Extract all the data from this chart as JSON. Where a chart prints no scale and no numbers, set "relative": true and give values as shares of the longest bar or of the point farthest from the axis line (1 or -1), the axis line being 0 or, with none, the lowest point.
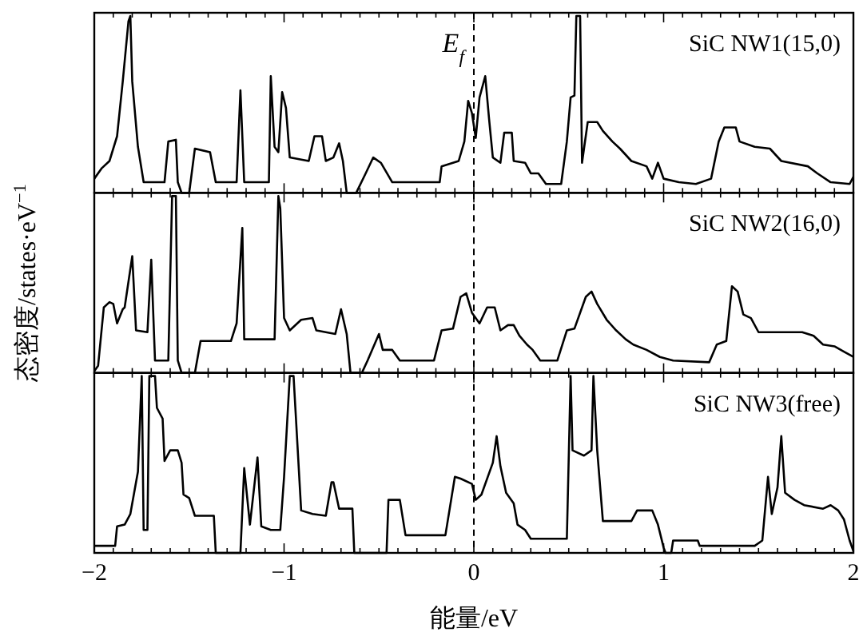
{
  "chart_data": [
    {
      "type": "line",
      "relative": true,
      "xlim": [
        -2,
        2
      ],
      "xticks": [
        -2,
        -1,
        0,
        1,
        2
      ],
      "tick_labels": false,
      "annotations": [
        {
          "text": "E$_{f}$",
          "x": 0,
          "y": 0.85
        }
      ],
      "ref_lines": [
        {
          "axis": "x",
          "value": 0,
          "line_style": "dashed",
          "color": "#000000"
        }
      ],
      "series": [
        {
          "name": "SiC NW1(15,0)",
          "color": "#000000",
          "x": [
            -2.0,
            -1.96,
            -1.92,
            -1.88,
            -1.85,
            -1.82,
            -1.81,
            -1.8,
            -1.77,
            -1.74,
            -1.63,
            -1.61,
            -1.57,
            -1.56,
            -1.54,
            -1.5,
            -1.47,
            -1.39,
            -1.36,
            -1.25,
            -1.23,
            -1.21,
            -1.08,
            -1.07,
            -1.05,
            -1.03,
            -1.01,
            -0.99,
            -0.97,
            -0.87,
            -0.84,
            -0.8,
            -0.78,
            -0.74,
            -0.71,
            -0.69,
            -0.67,
            -0.62,
            -0.57,
            -0.53,
            -0.49,
            -0.43,
            -0.18,
            -0.17,
            -0.08,
            -0.05,
            -0.03,
            -0.01,
            0.01,
            0.03,
            0.06,
            0.08,
            0.1,
            0.14,
            0.16,
            0.2,
            0.21,
            0.27,
            0.3,
            0.34,
            0.38,
            0.46,
            0.49,
            0.51,
            0.53,
            0.54,
            0.56,
            0.57,
            0.6,
            0.65,
            0.68,
            0.73,
            0.77,
            0.83,
            0.91,
            0.94,
            0.97,
            1.0,
            1.08,
            1.17,
            1.25,
            1.29,
            1.32,
            1.38,
            1.4,
            1.48,
            1.56,
            1.62,
            1.76,
            1.81,
            1.88,
            1.98,
            2.0
          ],
          "values": [
            0.08,
            0.14,
            0.18,
            0.32,
            0.63,
            0.97,
            1.0,
            0.63,
            0.26,
            0.06,
            0.06,
            0.29,
            0.3,
            0.06,
            0,
            0,
            0.25,
            0.23,
            0.06,
            0.06,
            0.58,
            0.06,
            0.06,
            0.66,
            0.26,
            0.23,
            0.57,
            0.48,
            0.2,
            0.18,
            0.32,
            0.32,
            0.18,
            0.2,
            0.28,
            0.18,
            0,
            0,
            0.11,
            0.2,
            0.17,
            0.06,
            0.06,
            0.15,
            0.18,
            0.29,
            0.52,
            0.45,
            0.31,
            0.54,
            0.66,
            0.42,
            0.2,
            0.17,
            0.34,
            0.34,
            0.18,
            0.17,
            0.11,
            0.11,
            0.05,
            0.05,
            0.29,
            0.54,
            0.55,
            1.0,
            1.0,
            0.17,
            0.4,
            0.4,
            0.35,
            0.29,
            0.25,
            0.18,
            0.15,
            0.08,
            0.17,
            0.08,
            0.06,
            0.05,
            0.08,
            0.29,
            0.37,
            0.37,
            0.29,
            0.26,
            0.25,
            0.18,
            0.15,
            0.11,
            0.06,
            0.05,
            0.09
          ]
        }
      ]
    },
    {
      "type": "line",
      "relative": true,
      "xlim": [
        -2,
        2
      ],
      "xticks": [
        -2,
        -1,
        0,
        1,
        2
      ],
      "tick_labels": false,
      "ylabel": "态密度/states·eV$^{−1}$",
      "ref_lines": [
        {
          "axis": "x",
          "value": 0,
          "line_style": "dashed",
          "color": "#000000"
        }
      ],
      "series": [
        {
          "name": "SiC NW2(16,0)",
          "color": "#000000",
          "x": [
            -2.0,
            -1.98,
            -1.95,
            -1.92,
            -1.9,
            -1.88,
            -1.85,
            -1.84,
            -1.8,
            -1.78,
            -1.72,
            -1.7,
            -1.68,
            -1.61,
            -1.59,
            -1.57,
            -1.56,
            -1.54,
            -1.47,
            -1.44,
            -1.28,
            -1.25,
            -1.22,
            -1.21,
            -1.05,
            -1.03,
            -1.02,
            -1.0,
            -0.97,
            -0.91,
            -0.85,
            -0.83,
            -0.73,
            -0.7,
            -0.67,
            -0.65,
            -0.59,
            -0.56,
            -0.5,
            -0.48,
            -0.43,
            -0.39,
            -0.21,
            -0.17,
            -0.11,
            -0.07,
            -0.04,
            -0.01,
            0.03,
            0.07,
            0.11,
            0.14,
            0.18,
            0.21,
            0.24,
            0.28,
            0.31,
            0.35,
            0.44,
            0.49,
            0.53,
            0.59,
            0.62,
            0.65,
            0.7,
            0.75,
            0.8,
            0.84,
            0.91,
            0.98,
            1.05,
            1.24,
            1.28,
            1.33,
            1.36,
            1.39,
            1.42,
            1.46,
            1.5,
            1.55,
            1.73,
            1.79,
            1.84,
            1.9,
            1.95,
            2.0
          ],
          "values": [
            0.01,
            0.04,
            0.37,
            0.4,
            0.39,
            0.28,
            0.36,
            0.37,
            0.66,
            0.24,
            0.23,
            0.64,
            0.07,
            0.07,
            1.0,
            1.0,
            0.07,
            0,
            0,
            0.18,
            0.18,
            0.28,
            0.82,
            0.19,
            0.19,
            1.0,
            0.93,
            0.31,
            0.24,
            0.3,
            0.31,
            0.24,
            0.22,
            0.36,
            0.22,
            0,
            0,
            0.07,
            0.22,
            0.13,
            0.13,
            0.07,
            0.07,
            0.24,
            0.25,
            0.43,
            0.45,
            0.34,
            0.28,
            0.37,
            0.37,
            0.24,
            0.27,
            0.27,
            0.21,
            0.16,
            0.13,
            0.07,
            0.07,
            0.24,
            0.25,
            0.43,
            0.46,
            0.39,
            0.3,
            0.24,
            0.19,
            0.16,
            0.13,
            0.09,
            0.07,
            0.06,
            0.16,
            0.18,
            0.49,
            0.46,
            0.33,
            0.31,
            0.23,
            0.23,
            0.23,
            0.21,
            0.16,
            0.15,
            0.12,
            0.09
          ]
        }
      ]
    },
    {
      "type": "line",
      "relative": true,
      "xlim": [
        -2,
        2
      ],
      "xticks": [
        -2,
        -1,
        0,
        1,
        2
      ],
      "tick_labels": "x",
      "xlabel": "能量/eV",
      "ref_lines": [
        {
          "axis": "x",
          "value": 0,
          "line_style": "dashed",
          "color": "#000000"
        }
      ],
      "series": [
        {
          "name": "SiC NW3(free)",
          "color": "#000000",
          "x": [
            -2.0,
            -1.89,
            -1.88,
            -1.84,
            -1.81,
            -1.77,
            -1.75,
            -1.74,
            -1.72,
            -1.71,
            -1.68,
            -1.67,
            -1.64,
            -1.63,
            -1.6,
            -1.56,
            -1.54,
            -1.53,
            -1.5,
            -1.47,
            -1.37,
            -1.36,
            -1.23,
            -1.21,
            -1.18,
            -1.14,
            -1.12,
            -1.07,
            -1.02,
            -1.0,
            -0.97,
            -0.95,
            -0.92,
            -0.91,
            -0.85,
            -0.78,
            -0.75,
            -0.74,
            -0.71,
            -0.69,
            -0.64,
            -0.63,
            -0.46,
            -0.45,
            -0.39,
            -0.36,
            -0.15,
            -0.1,
            -0.07,
            -0.01,
            0.01,
            0.04,
            0.1,
            0.12,
            0.14,
            0.17,
            0.21,
            0.23,
            0.27,
            0.3,
            0.49,
            0.51,
            0.52,
            0.58,
            0.62,
            0.63,
            0.65,
            0.68,
            0.83,
            0.86,
            0.94,
            0.97,
            1.0,
            1.01,
            1.04,
            1.05,
            1.18,
            1.19,
            1.48,
            1.52,
            1.55,
            1.57,
            1.6,
            1.62,
            1.64,
            1.69,
            1.74,
            1.84,
            1.88,
            1.92,
            1.95,
            1.98,
            2.0
          ],
          "values": [
            0.04,
            0.04,
            0.15,
            0.16,
            0.22,
            0.46,
            1.0,
            0.13,
            0.13,
            1.0,
            1.0,
            0.82,
            0.76,
            0.52,
            0.58,
            0.58,
            0.51,
            0.33,
            0.31,
            0.21,
            0.21,
            0,
            0,
            0.48,
            0.16,
            0.54,
            0.15,
            0.13,
            0.13,
            0.43,
            1.0,
            1.0,
            0.43,
            0.24,
            0.22,
            0.21,
            0.4,
            0.4,
            0.25,
            0.25,
            0.25,
            0,
            0,
            0.3,
            0.3,
            0.1,
            0.1,
            0.43,
            0.42,
            0.39,
            0.3,
            0.33,
            0.51,
            0.66,
            0.49,
            0.34,
            0.28,
            0.16,
            0.13,
            0.08,
            0.08,
            1.0,
            0.58,
            0.55,
            0.58,
            1.0,
            0.58,
            0.18,
            0.18,
            0.24,
            0.24,
            0.16,
            0.03,
            0,
            0,
            0.07,
            0.07,
            0.04,
            0.04,
            0.07,
            0.43,
            0.22,
            0.37,
            0.66,
            0.34,
            0.3,
            0.27,
            0.25,
            0.27,
            0.24,
            0.19,
            0.07,
            0.01
          ]
        }
      ]
    }
  ]
}
